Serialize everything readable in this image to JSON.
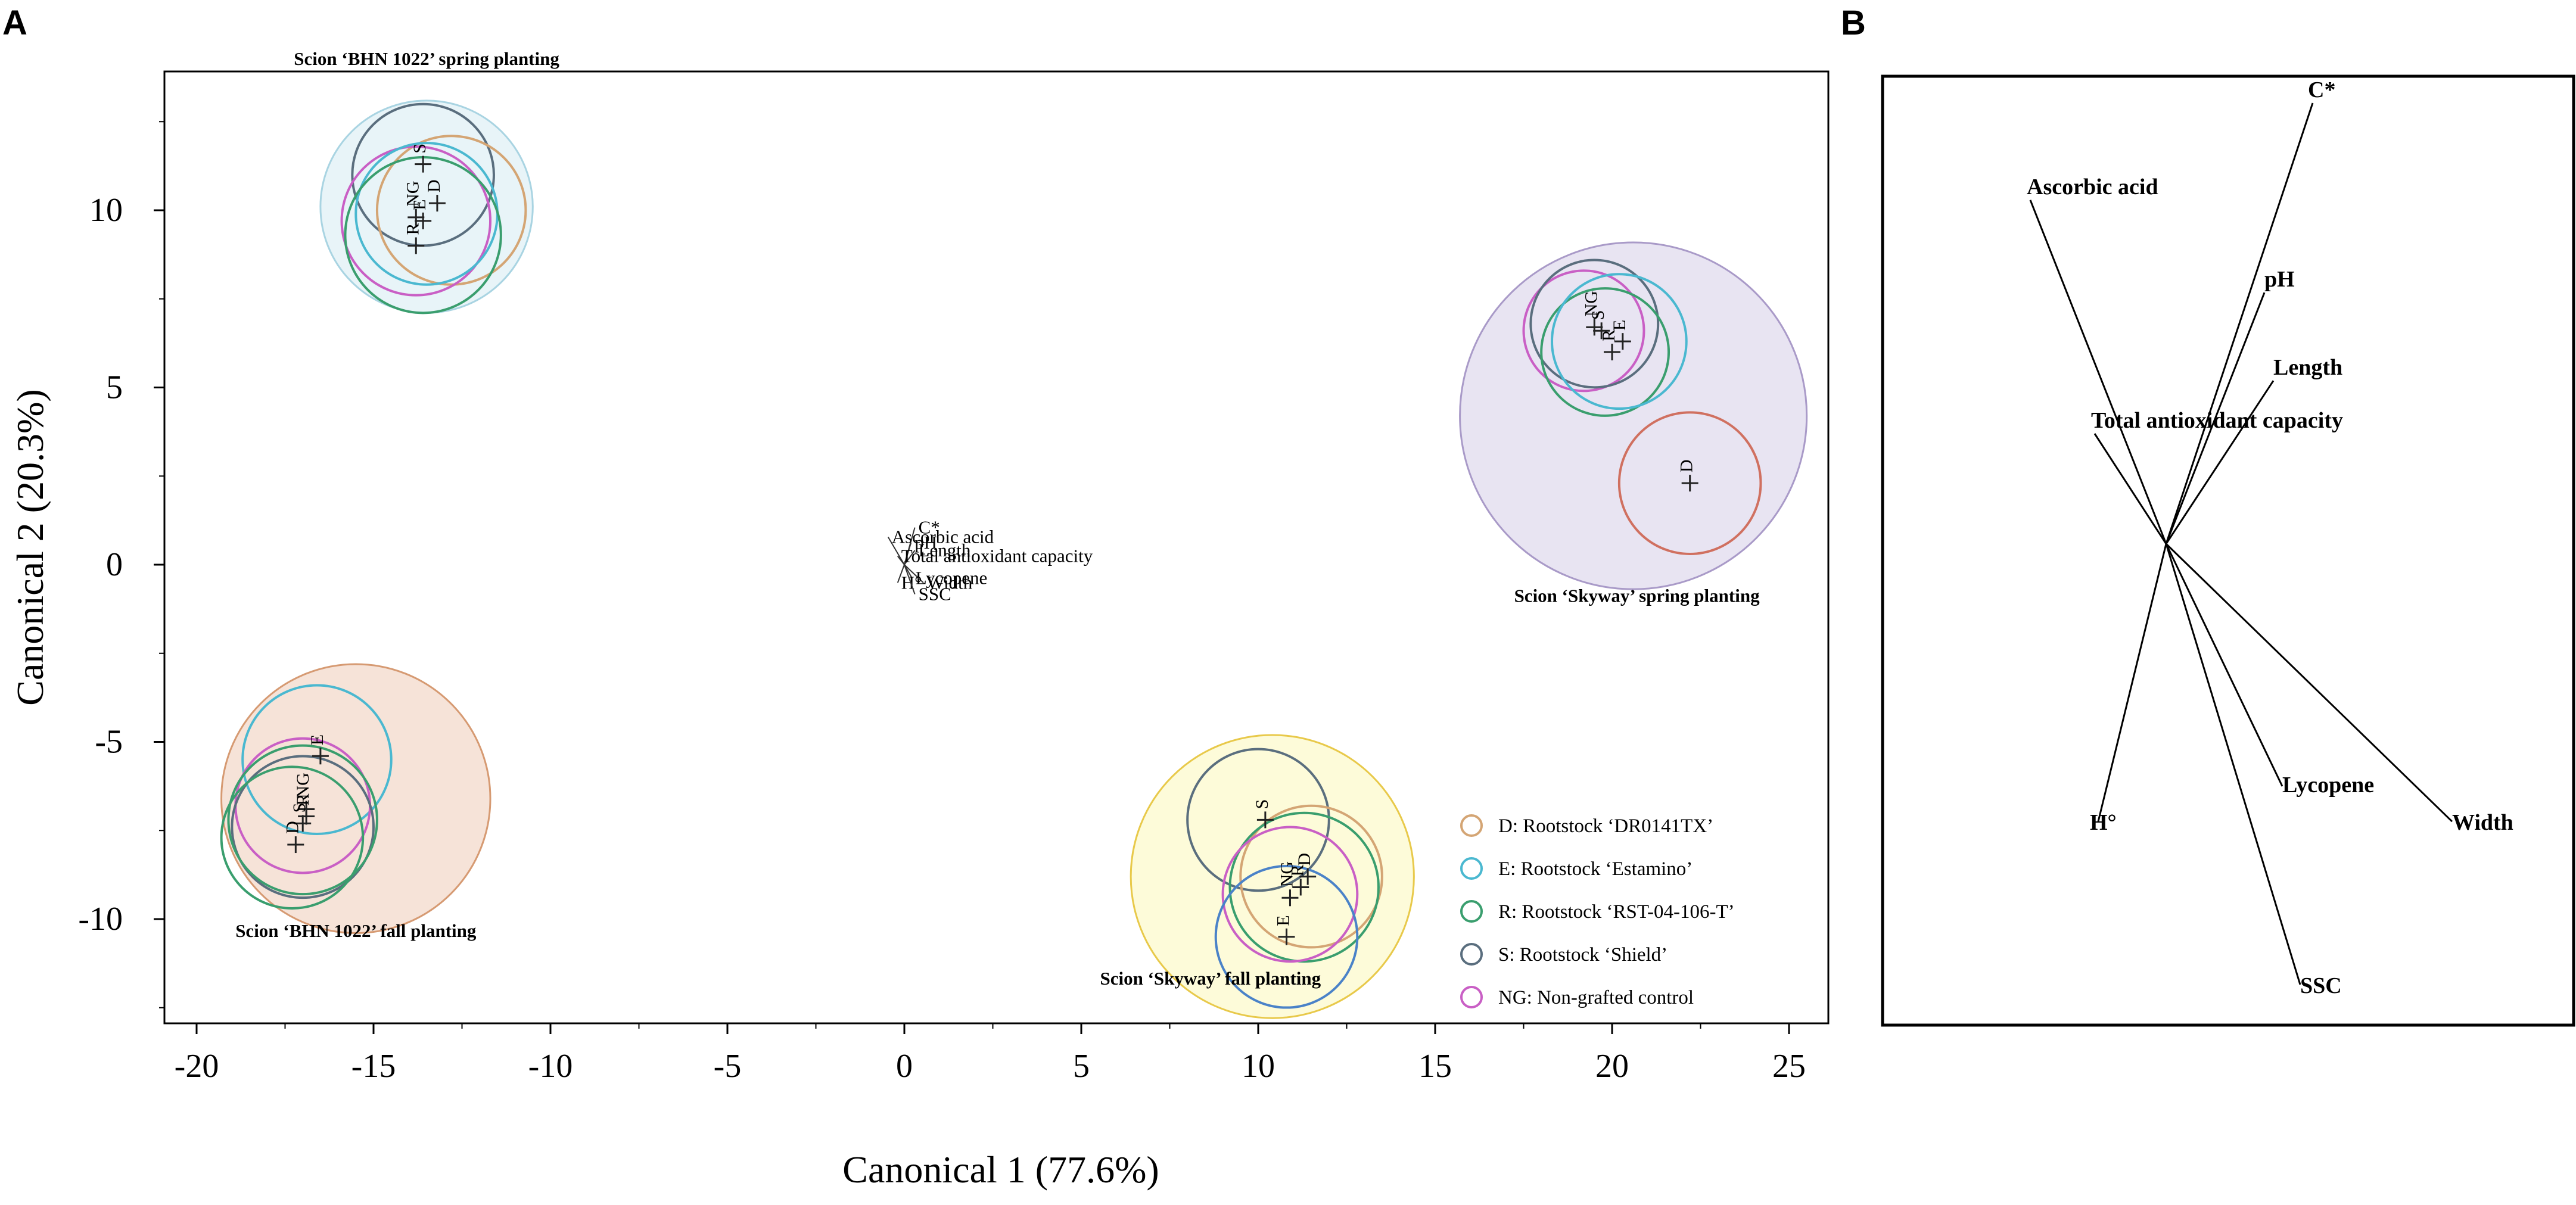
{
  "figure": {
    "panel_a_letter": "A",
    "panel_b_letter": "B"
  },
  "chart_data": [
    {
      "type": "scatter",
      "subtype": "canonical discriminant analysis plot with confidence circles",
      "xlabel": "Canonical 1 (77.6%)",
      "ylabel": "Canonical 2 (20.3%)",
      "xlim": [
        -21,
        26
      ],
      "ylim": [
        -13,
        13.5
      ],
      "xticks": [
        -20,
        -15,
        -10,
        -5,
        0,
        5,
        10,
        15,
        20,
        25
      ],
      "yticks": [
        10,
        5,
        0,
        -5,
        -10
      ],
      "groups": [
        {
          "label": "Scion ‘BHN 1022’ spring planting",
          "outer": {
            "cx": -13.5,
            "cy": 10.1,
            "r": 3.0
          },
          "fill": "#e8f4f8",
          "edge": "#a9d4e2",
          "points": [
            {
              "id": "S",
              "x": -13.6,
              "y": 11.3,
              "color": "#5a6e7e",
              "r": 2.0,
              "cx": -13.6,
              "cy": 11.0
            },
            {
              "id": "D",
              "x": -13.2,
              "y": 10.2,
              "color": "#d4a574",
              "r": 2.1,
              "cx": -12.8,
              "cy": 10.0
            },
            {
              "id": "NG",
              "x": -13.8,
              "y": 9.8,
              "color": "#c95fc5",
              "r": 2.1,
              "cx": -13.8,
              "cy": 9.7
            },
            {
              "id": "E",
              "x": -13.6,
              "y": 9.7,
              "color": "#4ab8d0",
              "r": 2.0,
              "cx": -13.5,
              "cy": 9.9
            },
            {
              "id": "R",
              "x": -13.8,
              "y": 9.0,
              "color": "#3a9e6e",
              "r": 2.2,
              "cx": -13.6,
              "cy": 9.3
            }
          ]
        },
        {
          "label": "Scion ‘Skyway’ spring planting",
          "outer": {
            "cx": 20.6,
            "cy": 4.2,
            "r": 4.9
          },
          "fill": "#e8e4f2",
          "edge": "#a99ac8",
          "points": [
            {
              "id": "NG",
              "x": 19.5,
              "y": 6.7,
              "color": "#c95fc5",
              "r": 1.7,
              "cx": 19.2,
              "cy": 6.6
            },
            {
              "id": "S",
              "x": 19.7,
              "y": 6.6,
              "color": "#5a6e7e",
              "r": 1.8,
              "cx": 19.5,
              "cy": 6.8
            },
            {
              "id": "R",
              "x": 20.0,
              "y": 6.0,
              "color": "#3a9e6e",
              "r": 1.8,
              "cx": 19.8,
              "cy": 6.0
            },
            {
              "id": "E",
              "x": 20.3,
              "y": 6.3,
              "color": "#4ab8d0",
              "r": 1.9,
              "cx": 20.2,
              "cy": 6.3
            },
            {
              "id": "D",
              "x": 22.2,
              "y": 2.3,
              "color": "#d07060",
              "r": 2.0,
              "cx": 22.2,
              "cy": 2.3
            }
          ]
        },
        {
          "label": "Scion ‘BHN 1022’ fall planting",
          "outer": {
            "cx": -15.5,
            "cy": -6.6,
            "r": 3.8
          },
          "fill": "#f6e3d8",
          "edge": "#d69a72",
          "points": [
            {
              "id": "E",
              "x": -16.5,
              "y": -5.4,
              "color": "#4ab8d0",
              "r": 2.1,
              "cx": -16.6,
              "cy": -5.5
            },
            {
              "id": "NG",
              "x": -16.9,
              "y": -6.9,
              "color": "#c95fc5",
              "r": 1.9,
              "cx": -17.0,
              "cy": -6.8
            },
            {
              "id": "S",
              "x": -17.0,
              "y": -7.3,
              "color": "#5a6e7e",
              "r": 2.0,
              "cx": -17.0,
              "cy": -7.4
            },
            {
              "id": "R",
              "x": -16.9,
              "y": -7.1,
              "color": "#3a9e6e",
              "r": 2.1,
              "cx": -17.0,
              "cy": -7.2
            },
            {
              "id": "D",
              "x": -17.2,
              "y": -7.9,
              "color": "#3a9e6e",
              "r": 2.0,
              "cx": -17.3,
              "cy": -7.7
            }
          ]
        },
        {
          "label": "Scion ‘Skyway’ fall planting",
          "outer": {
            "cx": 10.4,
            "cy": -8.8,
            "r": 4.0
          },
          "fill": "#fdfbd9",
          "edge": "#e8c94a",
          "points": [
            {
              "id": "S",
              "x": 10.2,
              "y": -7.2,
              "color": "#5a6e7e",
              "r": 2.0,
              "cx": 10.0,
              "cy": -7.2
            },
            {
              "id": "D",
              "x": 11.4,
              "y": -8.8,
              "color": "#d4a574",
              "r": 2.0,
              "cx": 11.5,
              "cy": -8.8
            },
            {
              "id": "R",
              "x": 11.2,
              "y": -9.1,
              "color": "#3a9e6e",
              "r": 2.1,
              "cx": 11.3,
              "cy": -9.1
            },
            {
              "id": "NG",
              "x": 10.9,
              "y": -9.4,
              "color": "#c95fc5",
              "r": 1.9,
              "cx": 10.9,
              "cy": -9.3
            },
            {
              "id": "E",
              "x": 10.8,
              "y": -10.5,
              "color": "#4a82c8",
              "r": 2.0,
              "cx": 10.8,
              "cy": -10.5
            }
          ]
        }
      ],
      "biplot_vectors": [
        {
          "label": "C*",
          "x": 0.55,
          "y": 1.95
        },
        {
          "label": "Ascorbic acid",
          "x": -0.85,
          "y": 1.45
        },
        {
          "label": "pH",
          "x": 0.35,
          "y": 1.15
        },
        {
          "label": "Length",
          "x": 0.55,
          "y": 0.75
        },
        {
          "label": "Total antioxidant capacity",
          "x": -0.35,
          "y": 0.45
        },
        {
          "label": "Lycopene",
          "x": 0.4,
          "y": -0.7
        },
        {
          "label": "Width",
          "x": 1.0,
          "y": -0.95
        },
        {
          "label": "H°",
          "x": -0.35,
          "y": -0.95
        },
        {
          "label": "SSC",
          "x": 0.55,
          "y": -1.55
        }
      ],
      "legend": [
        {
          "label": "D: Rootstock ‘DR0141TX’",
          "color": "#d4a574"
        },
        {
          "label": "E: Rootstock ‘Estamino’",
          "color": "#4ab8d0"
        },
        {
          "label": "R: Rootstock ‘RST-04-106-T’",
          "color": "#3a9e6e"
        },
        {
          "label": "S: Rootstock ‘Shield’",
          "color": "#5a6e7e"
        },
        {
          "label": "NG: Non-grafted control",
          "color": "#c95fc5"
        }
      ]
    },
    {
      "type": "biplot-vectors",
      "title": "",
      "vectors": [
        {
          "label": "C*",
          "x": 0.82,
          "y": 1.0
        },
        {
          "label": "Ascorbic acid",
          "x": -0.76,
          "y": 0.78
        },
        {
          "label": "pH",
          "x": 0.55,
          "y": 0.57
        },
        {
          "label": "Length",
          "x": 0.6,
          "y": 0.37
        },
        {
          "label": "Total antioxidant capacity",
          "x": -0.4,
          "y": 0.25
        },
        {
          "label": "Lycopene",
          "x": 0.65,
          "y": -0.55
        },
        {
          "label": "Width",
          "x": 1.6,
          "y": -0.63
        },
        {
          "label": "H°",
          "x": -0.38,
          "y": -0.63
        },
        {
          "label": "SSC",
          "x": 0.75,
          "y": -1.0
        }
      ]
    }
  ]
}
